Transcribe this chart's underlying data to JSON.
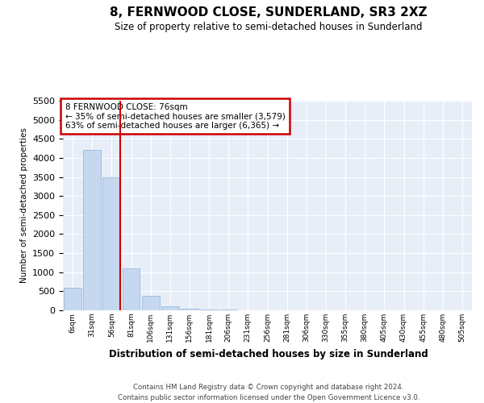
{
  "title": "8, FERNWOOD CLOSE, SUNDERLAND, SR3 2XZ",
  "subtitle": "Size of property relative to semi-detached houses in Sunderland",
  "xlabel": "Distribution of semi-detached houses by size in Sunderland",
  "ylabel": "Number of semi-detached properties",
  "bin_labels": [
    "6sqm",
    "31sqm",
    "56sqm",
    "81sqm",
    "106sqm",
    "131sqm",
    "156sqm",
    "181sqm",
    "206sqm",
    "231sqm",
    "256sqm",
    "281sqm",
    "306sqm",
    "330sqm",
    "355sqm",
    "380sqm",
    "405sqm",
    "430sqm",
    "455sqm",
    "480sqm",
    "505sqm"
  ],
  "bar_values": [
    600,
    4200,
    3500,
    1100,
    380,
    100,
    50,
    30,
    20,
    10,
    5,
    2,
    0,
    0,
    0,
    0,
    0,
    0,
    0,
    0,
    0
  ],
  "bar_color": "#c5d8f0",
  "bar_edge_color": "#8ab4d8",
  "red_line_bin": 2,
  "annotation_line1": "8 FERNWOOD CLOSE: 76sqm",
  "annotation_line2": "← 35% of semi-detached houses are smaller (3,579)",
  "annotation_line3": "63% of semi-detached houses are larger (6,365) →",
  "annotation_box_color": "#ffffff",
  "annotation_box_edge": "#cc0000",
  "ylim": [
    0,
    5500
  ],
  "yticks": [
    0,
    500,
    1000,
    1500,
    2000,
    2500,
    3000,
    3500,
    4000,
    4500,
    5000,
    5500
  ],
  "background_color": "#e8eef8",
  "grid_color": "#ffffff",
  "footer_line1": "Contains HM Land Registry data © Crown copyright and database right 2024.",
  "footer_line2": "Contains public sector information licensed under the Open Government Licence v3.0."
}
